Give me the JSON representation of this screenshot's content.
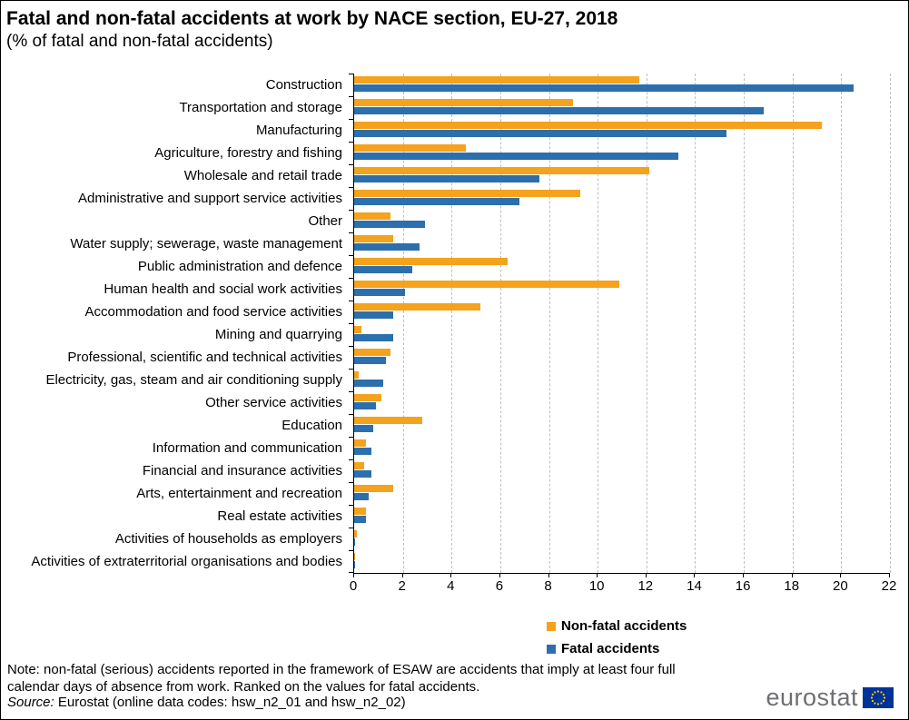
{
  "title": "Fatal and non-fatal accidents at work by NACE section, EU-27, 2018",
  "subtitle": "(% of fatal and non-fatal accidents)",
  "legend": {
    "non_fatal_label": "Non-fatal accidents",
    "fatal_label": "Fatal accidents"
  },
  "colors": {
    "non_fatal": "#F5A21D",
    "fatal": "#2D6FAC",
    "gridline": "#BFBFBF",
    "logo_gray": "#6E6F72",
    "flag_blue": "#003399",
    "flag_stars": "#FFCC00"
  },
  "note_line1": "Note: non-fatal (serious) accidents reported in the framework of ESAW are accidents that imply at least four full",
  "note_line2": "calendar days of absence from work. Ranked on the values for fatal accidents.",
  "source_label": "Source:",
  "source_text": " Eurostat (online data codes: hsw_n2_01 and hsw_n2_02)",
  "logo_text": "eurostat",
  "chart_data": {
    "type": "bar",
    "orientation": "horizontal-grouped",
    "title": "Fatal and non-fatal accidents at work by NACE section, EU-27, 2018",
    "subtitle": "(% of fatal and non-fatal accidents)",
    "xlabel": "",
    "ylabel": "",
    "xlim": [
      0,
      22
    ],
    "xticks": [
      0,
      2,
      4,
      6,
      8,
      10,
      12,
      14,
      16,
      18,
      20,
      22
    ],
    "grid": "vertical-dashed",
    "legend_position": "bottom-right",
    "sort_note": "Ranked on the values for fatal accidents",
    "categories": [
      "Construction",
      "Transportation and storage",
      "Manufacturing",
      "Agriculture, forestry and fishing",
      "Wholesale and retail trade",
      "Administrative and support service activities",
      "Other",
      "Water supply; sewerage, waste management",
      "Public administration and defence",
      "Human health and social work activities",
      "Accommodation and food service activities",
      "Mining and quarrying",
      "Professional, scientific and technical activities",
      "Electricity, gas, steam and air conditioning supply",
      "Other service activities",
      "Education",
      "Information and communication",
      "Financial and insurance activities",
      "Arts, entertainment and recreation",
      "Real estate activities",
      "Activities of households as employers",
      "Activities of extraterritorial organisations and bodies"
    ],
    "series": [
      {
        "name": "Non-fatal accidents",
        "color": "#F5A21D",
        "values": [
          11.7,
          9.0,
          19.2,
          4.6,
          12.1,
          9.3,
          1.5,
          1.6,
          6.3,
          10.9,
          5.2,
          0.3,
          1.5,
          0.2,
          1.1,
          2.8,
          0.5,
          0.4,
          1.6,
          0.5,
          0.1,
          0.02
        ]
      },
      {
        "name": "Fatal accidents",
        "color": "#2D6FAC",
        "values": [
          20.5,
          16.8,
          15.3,
          13.3,
          7.6,
          6.8,
          2.9,
          2.7,
          2.4,
          2.1,
          1.6,
          1.6,
          1.3,
          1.2,
          0.9,
          0.8,
          0.7,
          0.7,
          0.6,
          0.5,
          0.05,
          0.05
        ]
      }
    ]
  }
}
